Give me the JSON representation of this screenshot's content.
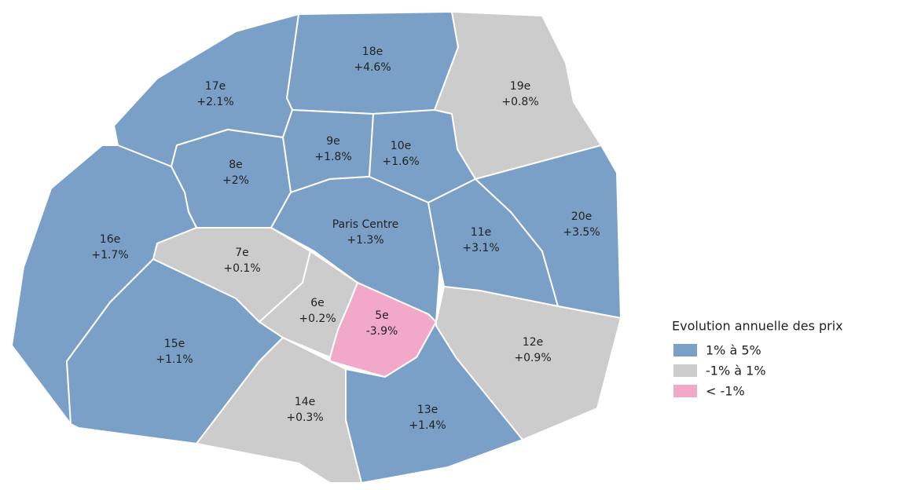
{
  "legend": {
    "title": "Evolution annuelle des prix",
    "items": [
      {
        "label": "1% à 5%",
        "color": "#7aa0c7"
      },
      {
        "label": "-1% à 1%",
        "color": "#cccccc"
      },
      {
        "label": "< -1%",
        "color": "#f2a8c8"
      }
    ]
  },
  "districts": [
    {
      "name": "18e",
      "change": "+4.6%",
      "class": 0
    },
    {
      "name": "17e",
      "change": "+2.1%",
      "class": 0
    },
    {
      "name": "19e",
      "change": "+0.8%",
      "class": 1
    },
    {
      "name": "9e",
      "change": "+1.8%",
      "class": 0
    },
    {
      "name": "10e",
      "change": "+1.6%",
      "class": 0
    },
    {
      "name": "8e",
      "change": "+2%",
      "class": 0
    },
    {
      "name": "16e",
      "change": "+1.7%",
      "class": 0
    },
    {
      "name": "7e",
      "change": "+0.1%",
      "class": 1
    },
    {
      "name": "Paris Centre",
      "change": "+1.3%",
      "class": 0
    },
    {
      "name": "11e",
      "change": "+3.1%",
      "class": 0
    },
    {
      "name": "20e",
      "change": "+3.5%",
      "class": 0
    },
    {
      "name": "6e",
      "change": "+0.2%",
      "class": 1
    },
    {
      "name": "5e",
      "change": "-3.9%",
      "class": 2
    },
    {
      "name": "15e",
      "change": "+1.1%",
      "class": 0
    },
    {
      "name": "12e",
      "change": "+0.9%",
      "class": 1
    },
    {
      "name": "13e",
      "change": "+1.4%",
      "class": 0
    },
    {
      "name": "14e",
      "change": "+0.3%",
      "class": 1
    }
  ]
}
